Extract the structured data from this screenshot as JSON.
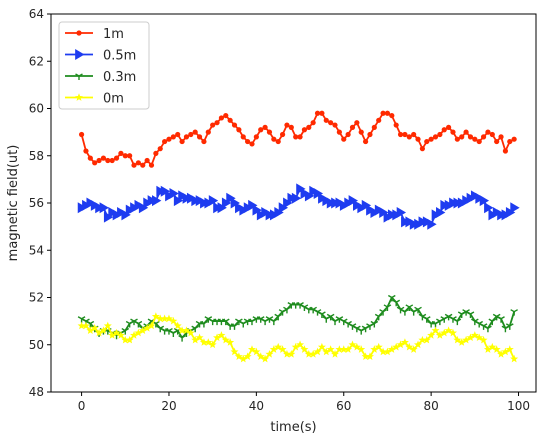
{
  "chart_data": {
    "type": "line",
    "title": "",
    "xlabel": "time(s)",
    "ylabel": "magnetic field(ut)",
    "xlim": [
      -7,
      104
    ],
    "ylim": [
      48,
      64
    ],
    "x_ticks": [
      0,
      20,
      40,
      60,
      80,
      100
    ],
    "y_ticks": [
      48,
      50,
      52,
      54,
      56,
      58,
      60,
      62,
      64
    ],
    "x_tick_labels": [
      "0",
      "20",
      "40",
      "60",
      "80",
      "100"
    ],
    "y_tick_labels": [
      "48",
      "50",
      "52",
      "54",
      "56",
      "58",
      "60",
      "62",
      "64"
    ],
    "grid": false,
    "legend_position": "top-left",
    "x": [
      0,
      1,
      2,
      3,
      4,
      5,
      6,
      7,
      8,
      9,
      10,
      11,
      12,
      13,
      14,
      15,
      16,
      17,
      18,
      19,
      20,
      21,
      22,
      23,
      24,
      25,
      26,
      27,
      28,
      29,
      30,
      31,
      32,
      33,
      34,
      35,
      36,
      37,
      38,
      39,
      40,
      41,
      42,
      43,
      44,
      45,
      46,
      47,
      48,
      49,
      50,
      51,
      52,
      53,
      54,
      55,
      56,
      57,
      58,
      59,
      60,
      61,
      62,
      63,
      64,
      65,
      66,
      67,
      68,
      69,
      70,
      71,
      72,
      73,
      74,
      75,
      76,
      77,
      78,
      79,
      80,
      81,
      82,
      83,
      84,
      85,
      86,
      87,
      88,
      89,
      90,
      91,
      92,
      93,
      94,
      95,
      96,
      97,
      98,
      99
    ],
    "series": [
      {
        "name": "1m",
        "color": "#ff2a00",
        "marker": "circle",
        "values": [
          58.9,
          58.2,
          57.9,
          57.7,
          57.8,
          57.9,
          57.8,
          57.8,
          57.9,
          58.1,
          58.0,
          58.0,
          57.6,
          57.7,
          57.6,
          57.8,
          57.6,
          58.1,
          58.3,
          58.6,
          58.7,
          58.8,
          58.9,
          58.6,
          58.8,
          58.9,
          59.0,
          58.8,
          58.6,
          59.0,
          59.3,
          59.4,
          59.6,
          59.7,
          59.5,
          59.3,
          59.1,
          58.8,
          58.6,
          58.5,
          58.8,
          59.1,
          59.2,
          59.0,
          58.7,
          58.6,
          58.9,
          59.3,
          59.2,
          58.8,
          58.8,
          59.1,
          59.2,
          59.4,
          59.8,
          59.8,
          59.5,
          59.4,
          59.3,
          59.0,
          58.7,
          58.9,
          59.2,
          59.4,
          59.0,
          58.6,
          58.9,
          59.2,
          59.5,
          59.8,
          59.8,
          59.7,
          59.3,
          58.9,
          58.9,
          58.8,
          58.9,
          58.7,
          58.3,
          58.6,
          58.7,
          58.8,
          58.9,
          59.1,
          59.2,
          59.0,
          58.7,
          58.8,
          59.0,
          58.8,
          58.7,
          58.6,
          58.8,
          59.0,
          58.9,
          58.6,
          58.8,
          58.2,
          58.6,
          58.7
        ]
      },
      {
        "name": "0.5m",
        "color": "#1e3cf0",
        "marker": "triangle-right",
        "values": [
          55.8,
          55.9,
          56.0,
          55.9,
          55.8,
          55.8,
          55.4,
          55.6,
          55.5,
          55.6,
          55.5,
          55.7,
          55.8,
          55.9,
          55.8,
          56.0,
          56.1,
          56.1,
          56.5,
          56.5,
          56.3,
          56.4,
          56.1,
          56.3,
          56.2,
          56.2,
          56.1,
          56.1,
          56.0,
          56.0,
          56.1,
          55.8,
          55.8,
          56.0,
          56.2,
          56.0,
          55.8,
          55.7,
          55.8,
          55.9,
          55.7,
          55.5,
          55.6,
          55.5,
          55.5,
          55.6,
          55.8,
          56.0,
          56.2,
          56.2,
          56.6,
          56.4,
          56.3,
          56.5,
          56.4,
          56.2,
          56.1,
          56.0,
          56.0,
          56.0,
          55.9,
          56.0,
          56.1,
          55.9,
          55.8,
          55.9,
          55.7,
          55.6,
          55.7,
          55.6,
          55.4,
          55.5,
          55.5,
          55.6,
          55.2,
          55.2,
          55.1,
          55.1,
          55.2,
          55.2,
          55.1,
          55.5,
          55.6,
          55.9,
          55.9,
          56.0,
          56.0,
          56.0,
          56.1,
          56.2,
          56.3,
          56.2,
          56.1,
          55.8,
          55.5,
          55.6,
          55.5,
          55.5,
          55.6,
          55.8
        ]
      },
      {
        "name": "0.3m",
        "color": "#1e8c1e",
        "marker": "tri-down",
        "values": [
          51.1,
          51.0,
          50.9,
          50.7,
          50.5,
          50.6,
          50.6,
          50.5,
          50.4,
          50.5,
          50.6,
          50.9,
          51.0,
          50.9,
          50.7,
          50.8,
          51.0,
          50.9,
          50.7,
          50.6,
          50.6,
          50.5,
          50.6,
          50.3,
          50.5,
          50.6,
          50.7,
          50.9,
          50.9,
          51.1,
          51.0,
          51.0,
          51.0,
          51.0,
          50.8,
          50.8,
          51.0,
          50.9,
          51.0,
          51.0,
          51.1,
          51.1,
          51.0,
          51.1,
          51.0,
          51.2,
          51.4,
          51.5,
          51.7,
          51.7,
          51.7,
          51.6,
          51.5,
          51.5,
          51.4,
          51.3,
          51.1,
          51.2,
          51.0,
          51.1,
          51.0,
          50.9,
          50.8,
          50.7,
          50.6,
          50.7,
          50.8,
          50.9,
          51.2,
          51.4,
          51.6,
          52.0,
          51.8,
          51.5,
          51.4,
          51.6,
          51.4,
          51.5,
          51.2,
          51.1,
          50.9,
          50.9,
          51.0,
          51.1,
          51.2,
          51.1,
          51.0,
          51.3,
          51.4,
          51.3,
          51.0,
          50.9,
          50.8,
          50.7,
          51.0,
          51.2,
          51.1,
          50.7,
          50.8,
          51.4
        ]
      },
      {
        "name": "0m",
        "color": "#ffff00",
        "marker": "star",
        "values": [
          50.8,
          50.8,
          50.6,
          50.7,
          50.5,
          50.6,
          50.8,
          50.4,
          50.5,
          50.4,
          50.2,
          50.2,
          50.4,
          50.5,
          50.6,
          50.7,
          50.8,
          51.2,
          51.1,
          51.1,
          51.1,
          51.0,
          50.8,
          50.6,
          50.6,
          50.5,
          50.2,
          50.3,
          50.1,
          50.1,
          50.0,
          50.3,
          50.4,
          50.2,
          50.1,
          49.7,
          49.5,
          49.4,
          49.5,
          49.8,
          49.7,
          49.5,
          49.4,
          49.6,
          49.8,
          49.9,
          49.8,
          49.6,
          49.6,
          49.9,
          50.0,
          49.8,
          49.6,
          49.6,
          49.7,
          49.9,
          49.7,
          49.8,
          49.6,
          49.8,
          49.8,
          49.8,
          50.0,
          49.9,
          49.8,
          49.5,
          49.5,
          49.8,
          49.9,
          49.7,
          49.7,
          49.8,
          49.9,
          50.0,
          50.1,
          49.9,
          49.8,
          50.0,
          50.2,
          50.2,
          50.4,
          50.6,
          50.4,
          50.5,
          50.6,
          50.5,
          50.2,
          50.1,
          50.2,
          50.3,
          50.4,
          50.3,
          50.2,
          49.8,
          49.9,
          49.8,
          49.6,
          49.7,
          49.8,
          49.4
        ]
      }
    ]
  }
}
